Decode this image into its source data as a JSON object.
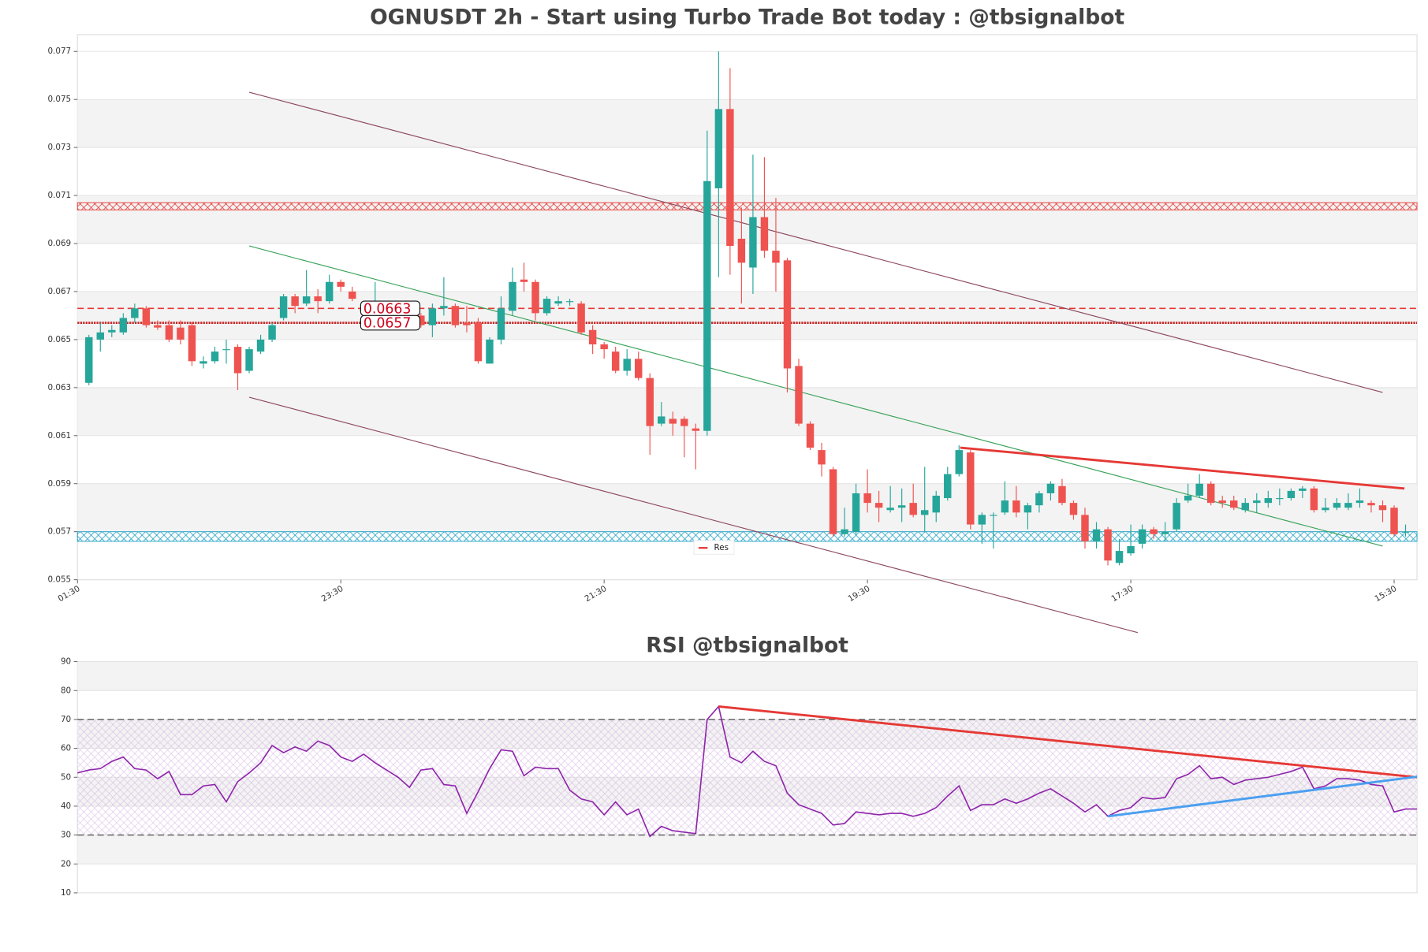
{
  "chart_data": [
    {
      "type": "candlestick",
      "title": "OGNUSDT 2h - Start using Turbo Trade Bot today : @tbsignalbot",
      "up_color": "#26a69a",
      "down_color": "#ef5350",
      "bands": true,
      "xlim": [
        0,
        117
      ],
      "xticks": [
        {
          "value": 0,
          "label": "01:30"
        },
        {
          "value": 23,
          "label": "23:30"
        },
        {
          "value": 46,
          "label": "21:30"
        },
        {
          "value": 69,
          "label": "19:30"
        },
        {
          "value": 92,
          "label": "17:30"
        },
        {
          "value": 115,
          "label": "15:30"
        }
      ],
      "ylim": [
        0.055,
        0.0777
      ],
      "yticks": [
        0.055,
        0.057,
        0.059,
        0.061,
        0.063,
        0.065,
        0.067,
        0.069,
        0.071,
        0.073,
        0.075,
        0.077
      ],
      "x": [
        1,
        2,
        3,
        4,
        5,
        6,
        7,
        8,
        9,
        10,
        11,
        12,
        13,
        14,
        15,
        16,
        17,
        18,
        19,
        20,
        21,
        22,
        23,
        24,
        25,
        26,
        27,
        28,
        29,
        30,
        31,
        32,
        33,
        34,
        35,
        36,
        37,
        38,
        39,
        40,
        41,
        42,
        43,
        44,
        45,
        46,
        47,
        48,
        49,
        50,
        51,
        52,
        53,
        54,
        55,
        56,
        57,
        58,
        59,
        60,
        61,
        62,
        63,
        64,
        65,
        66,
        67,
        68,
        69,
        70,
        71,
        72,
        73,
        74,
        75,
        76,
        77,
        78,
        79,
        80,
        81,
        82,
        83,
        84,
        85,
        86,
        87,
        88,
        89,
        90,
        91,
        92,
        93,
        94,
        95,
        96,
        97,
        98,
        99,
        100,
        101,
        102,
        103,
        104,
        105,
        106,
        107,
        108,
        109,
        110,
        111,
        112,
        113,
        114,
        115,
        116
      ],
      "open": [
        0.0632,
        0.065,
        0.0653,
        0.0653,
        0.0659,
        0.0663,
        0.0656,
        0.0656,
        0.0655,
        0.0656,
        0.064,
        0.0641,
        0.0646,
        0.0647,
        0.0637,
        0.0645,
        0.065,
        0.0659,
        0.0668,
        0.0665,
        0.0668,
        0.0666,
        0.0674,
        0.067,
        0.0663,
        0.0663,
        0.0661,
        0.066,
        0.0657,
        0.066,
        0.0656,
        0.0663,
        0.0664,
        0.0657,
        0.0657,
        0.064,
        0.065,
        0.0662,
        0.0675,
        0.0674,
        0.0661,
        0.0665,
        0.0666,
        0.0665,
        0.0654,
        0.0648,
        0.0645,
        0.0637,
        0.0642,
        0.0634,
        0.0615,
        0.0617,
        0.0617,
        0.0613,
        0.0612,
        0.0713,
        0.0746,
        0.0692,
        0.068,
        0.0701,
        0.0687,
        0.0683,
        0.0639,
        0.0615,
        0.0604,
        0.0596,
        0.0569,
        0.057,
        0.0586,
        0.0582,
        0.0579,
        0.058,
        0.0582,
        0.0577,
        0.0578,
        0.0584,
        0.0594,
        0.0603,
        0.0573,
        0.0577,
        0.0578,
        0.0583,
        0.0578,
        0.0581,
        0.0586,
        0.0589,
        0.0582,
        0.0577,
        0.0566,
        0.0571,
        0.0557,
        0.0561,
        0.0565,
        0.0571,
        0.0569,
        0.0571,
        0.0583,
        0.0585,
        0.059,
        0.0583,
        0.0583,
        0.0579,
        0.0582,
        0.0582,
        0.0584,
        0.0584,
        0.0587,
        0.0588,
        0.0579,
        0.058,
        0.058,
        0.0582,
        0.0582,
        0.0581,
        0.058,
        0.057
      ],
      "high": [
        0.0652,
        0.0657,
        0.0656,
        0.0661,
        0.0665,
        0.0664,
        0.0658,
        0.0658,
        0.0658,
        0.0657,
        0.0643,
        0.0647,
        0.065,
        0.0648,
        0.0647,
        0.0652,
        0.0657,
        0.0669,
        0.0669,
        0.0679,
        0.0671,
        0.0677,
        0.0675,
        0.0672,
        0.0664,
        0.0674,
        0.0662,
        0.0661,
        0.066,
        0.0661,
        0.0665,
        0.0676,
        0.0665,
        0.0664,
        0.0659,
        0.0651,
        0.0668,
        0.068,
        0.0682,
        0.0675,
        0.0668,
        0.0668,
        0.0667,
        0.0666,
        0.0656,
        0.0649,
        0.0647,
        0.0646,
        0.0645,
        0.0636,
        0.0624,
        0.062,
        0.0618,
        0.0615,
        0.0737,
        0.077,
        0.0763,
        0.0705,
        0.0727,
        0.0726,
        0.0709,
        0.0684,
        0.0642,
        0.0616,
        0.0607,
        0.0597,
        0.058,
        0.059,
        0.0596,
        0.0587,
        0.0589,
        0.0588,
        0.059,
        0.0597,
        0.0587,
        0.0597,
        0.0606,
        0.0604,
        0.0578,
        0.0578,
        0.0591,
        0.0589,
        0.0582,
        0.0587,
        0.0591,
        0.0592,
        0.0583,
        0.058,
        0.0574,
        0.0572,
        0.0567,
        0.0573,
        0.0573,
        0.0572,
        0.0574,
        0.0584,
        0.059,
        0.0594,
        0.0591,
        0.0585,
        0.0585,
        0.0584,
        0.0586,
        0.0587,
        0.0588,
        0.0588,
        0.0589,
        0.0589,
        0.0584,
        0.0584,
        0.0586,
        0.0588,
        0.0583,
        0.0583,
        0.0581,
        0.0573
      ],
      "low": [
        0.0631,
        0.0645,
        0.0651,
        0.0652,
        0.0657,
        0.0655,
        0.0654,
        0.0649,
        0.0648,
        0.0639,
        0.0638,
        0.064,
        0.064,
        0.0629,
        0.0636,
        0.0644,
        0.0649,
        0.0658,
        0.0661,
        0.0664,
        0.0661,
        0.0665,
        0.067,
        0.0666,
        0.0661,
        0.0662,
        0.0658,
        0.0657,
        0.0656,
        0.0655,
        0.0651,
        0.066,
        0.0655,
        0.0653,
        0.064,
        0.064,
        0.0648,
        0.066,
        0.067,
        0.0658,
        0.066,
        0.0664,
        0.0664,
        0.0652,
        0.0644,
        0.0642,
        0.0636,
        0.0635,
        0.0633,
        0.0602,
        0.0614,
        0.061,
        0.0601,
        0.0596,
        0.061,
        0.0676,
        0.0677,
        0.0665,
        0.0669,
        0.0684,
        0.067,
        0.0628,
        0.0614,
        0.0604,
        0.0593,
        0.0568,
        0.0568,
        0.0569,
        0.0578,
        0.0574,
        0.0578,
        0.0574,
        0.0576,
        0.057,
        0.0574,
        0.0583,
        0.0593,
        0.0571,
        0.0565,
        0.0563,
        0.0577,
        0.0576,
        0.0571,
        0.0578,
        0.0583,
        0.0581,
        0.0575,
        0.0563,
        0.0563,
        0.0556,
        0.0556,
        0.056,
        0.0563,
        0.0567,
        0.0566,
        0.057,
        0.0582,
        0.0584,
        0.0581,
        0.058,
        0.0579,
        0.0578,
        0.0578,
        0.058,
        0.0581,
        0.0583,
        0.0584,
        0.0578,
        0.0578,
        0.0579,
        0.0579,
        0.058,
        0.0578,
        0.0574,
        0.0568,
        0.0568
      ],
      "close": [
        0.0651,
        0.0653,
        0.0654,
        0.0659,
        0.0663,
        0.0656,
        0.0655,
        0.065,
        0.065,
        0.0641,
        0.0641,
        0.0645,
        0.0646,
        0.0636,
        0.0646,
        0.065,
        0.0656,
        0.0668,
        0.0664,
        0.0668,
        0.0666,
        0.0674,
        0.0672,
        0.0667,
        0.0662,
        0.0664,
        0.066,
        0.0659,
        0.0659,
        0.0656,
        0.0663,
        0.0664,
        0.0656,
        0.0656,
        0.0641,
        0.065,
        0.0663,
        0.0674,
        0.0674,
        0.0661,
        0.0667,
        0.0666,
        0.0666,
        0.0653,
        0.0648,
        0.0646,
        0.0637,
        0.0642,
        0.0634,
        0.0614,
        0.0618,
        0.0615,
        0.0614,
        0.0612,
        0.0716,
        0.0746,
        0.0689,
        0.0682,
        0.0701,
        0.0687,
        0.0682,
        0.0638,
        0.0615,
        0.0605,
        0.0598,
        0.0569,
        0.0571,
        0.0586,
        0.0582,
        0.058,
        0.058,
        0.0581,
        0.0577,
        0.0579,
        0.0585,
        0.0594,
        0.0604,
        0.0573,
        0.0577,
        0.0577,
        0.0583,
        0.0578,
        0.0581,
        0.0586,
        0.059,
        0.0582,
        0.0577,
        0.0566,
        0.0571,
        0.0558,
        0.0562,
        0.0564,
        0.0571,
        0.0569,
        0.057,
        0.0582,
        0.0585,
        0.059,
        0.0582,
        0.0582,
        0.058,
        0.0582,
        0.0583,
        0.0584,
        0.0584,
        0.0587,
        0.0588,
        0.0579,
        0.058,
        0.0582,
        0.0582,
        0.0583,
        0.0581,
        0.0579,
        0.0569,
        0.057
      ],
      "zones": [
        {
          "low": 0.0704,
          "high": 0.0707,
          "color": "#e53935"
        },
        {
          "low": 0.0566,
          "high": 0.057,
          "color": "#1e9fc4"
        }
      ],
      "levels": [
        {
          "value": 0.0663,
          "color": "#e53935",
          "style": "dashed"
        },
        {
          "value": 0.0657,
          "color": "#c62828",
          "style": "dotted"
        }
      ],
      "trend_lines": [
        {
          "x": [
            15,
            114
          ],
          "y": [
            0.0753,
            0.0628
          ],
          "color": "#8d4a5e"
        },
        {
          "x": [
            15,
            92.6
          ],
          "y": [
            0.0626,
            0.0528
          ],
          "color": "#8d4a5e"
        },
        {
          "x": [
            15,
            114
          ],
          "y": [
            0.0689,
            0.0564
          ],
          "color": "#3aa35a"
        },
        {
          "name": "Res",
          "x": [
            77.1,
            115.9
          ],
          "y": [
            0.0605,
            0.0588
          ],
          "color": "#e53935"
        }
      ],
      "legend": "bottom center"
    },
    {
      "type": "line",
      "title": "RSI @tbsignalbot",
      "bands": true,
      "color": "#8e24aa",
      "xlim": [
        0,
        117
      ],
      "ylim": [
        10,
        90
      ],
      "yticks": [
        10,
        20,
        30,
        40,
        50,
        60,
        70,
        80,
        90
      ],
      "x": [
        0,
        1,
        2,
        3,
        4,
        5,
        6,
        7,
        8,
        9,
        10,
        11,
        12,
        13,
        14,
        15,
        16,
        17,
        18,
        19,
        20,
        21,
        22,
        23,
        24,
        25,
        26,
        27,
        28,
        29,
        30,
        31,
        32,
        33,
        34,
        35,
        36,
        37,
        38,
        39,
        40,
        41,
        42,
        43,
        44,
        45,
        46,
        47,
        48,
        49,
        50,
        51,
        52,
        53,
        54,
        55,
        56,
        57,
        58,
        59,
        60,
        61,
        62,
        63,
        64,
        65,
        66,
        67,
        68,
        69,
        70,
        71,
        72,
        73,
        74,
        75,
        76,
        77,
        78,
        79,
        80,
        81,
        82,
        83,
        84,
        85,
        86,
        87,
        88,
        89,
        90,
        91,
        92,
        93,
        94,
        95,
        96,
        97,
        98,
        99,
        100,
        101,
        102,
        103,
        104,
        105,
        106,
        107,
        108,
        109,
        110,
        111,
        112,
        113,
        114,
        115,
        116,
        117
      ],
      "values": [
        51.5,
        52.5,
        53,
        55.5,
        57,
        53,
        52.5,
        49.5,
        52,
        44,
        44,
        47,
        47.5,
        41.5,
        48.5,
        51.5,
        55,
        61,
        58.5,
        60.5,
        59,
        62.5,
        61,
        57,
        55.5,
        58,
        55,
        52.5,
        50,
        46.5,
        52.5,
        53,
        47.5,
        47,
        37.5,
        45,
        53,
        59.5,
        59,
        50.5,
        53.5,
        53,
        53,
        45.5,
        42.5,
        41.5,
        37,
        41.5,
        37,
        39,
        29.5,
        33,
        31.5,
        31,
        30.5,
        70,
        74.5,
        57,
        55,
        59,
        55.5,
        54,
        44.5,
        40.5,
        39,
        37.5,
        33.5,
        34,
        38,
        37.5,
        37,
        37.5,
        37.5,
        36.5,
        37.5,
        39.5,
        43.5,
        47,
        38.5,
        40.5,
        40.5,
        42.5,
        41,
        42.5,
        44.5,
        46,
        43.5,
        41,
        38,
        40.5,
        36.5,
        38.5,
        39.5,
        43,
        42.5,
        43,
        49.5,
        51,
        54,
        49.5,
        50,
        47.5,
        49,
        49.5,
        50,
        51,
        52,
        53.5,
        46,
        47,
        49.5,
        49.5,
        49,
        47.5,
        47,
        38,
        39,
        39
      ],
      "band": {
        "low": 30,
        "high": 70,
        "color": "#c9a0dc"
      },
      "levels": [
        {
          "value": 70,
          "color": "#555555",
          "style": "dashed"
        },
        {
          "value": 30,
          "color": "#555555",
          "style": "dashed"
        }
      ],
      "trend_lines": [
        {
          "x": [
            56,
            117
          ],
          "y": [
            74.5,
            50
          ],
          "color": "#e53935"
        },
        {
          "x": [
            90,
            117
          ],
          "y": [
            36.5,
            50.2
          ],
          "color": "#4a9ff0"
        }
      ]
    }
  ]
}
